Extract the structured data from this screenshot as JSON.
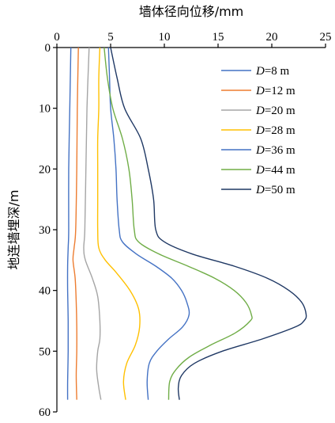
{
  "chart_data": {
    "type": "line",
    "xlabel": "墙体径向位移/mm",
    "ylabel": "地连墙埋深/m",
    "xlim": [
      0,
      25
    ],
    "ylim": [
      60,
      0
    ],
    "x_ticks": [
      "0",
      "5",
      "10",
      "15",
      "20",
      "25"
    ],
    "y_ticks": [
      "0",
      "10",
      "20",
      "30",
      "40",
      "50",
      "60"
    ],
    "x_axis_position": "top",
    "y_axis_inverted": true,
    "grid": false,
    "legend_position": "top-right",
    "series": [
      {
        "name": "D=8 m",
        "legend_italic": "D",
        "legend_rest": "=8 m",
        "color": "#4472C4",
        "depth": [
          0,
          10,
          20,
          30,
          33,
          36,
          40,
          45,
          50,
          55,
          58
        ],
        "displacement": [
          1.3,
          1.2,
          1.1,
          1.1,
          1.05,
          1.0,
          1.0,
          1.05,
          1.05,
          1.0,
          1.0
        ]
      },
      {
        "name": "D=12 m",
        "legend_italic": "D",
        "legend_rest": "=12 m",
        "color": "#ED7D31",
        "depth": [
          0,
          10,
          20,
          30,
          33,
          35,
          38,
          42,
          46,
          50,
          54,
          58
        ],
        "displacement": [
          2.0,
          1.9,
          1.85,
          1.75,
          1.6,
          1.5,
          1.7,
          1.8,
          1.85,
          1.85,
          1.8,
          1.85
        ]
      },
      {
        "name": "D=20 m",
        "legend_italic": "D",
        "legend_rest": "=20 m",
        "color": "#A5A5A5",
        "depth": [
          0,
          10,
          20,
          30,
          33,
          35,
          38,
          41,
          45,
          48,
          50,
          53,
          56,
          58
        ],
        "displacement": [
          3.0,
          2.8,
          2.7,
          2.6,
          2.5,
          2.65,
          3.3,
          3.8,
          4.0,
          4.0,
          3.8,
          3.7,
          3.9,
          4.1
        ]
      },
      {
        "name": "D=28 m",
        "legend_italic": "D",
        "legend_rest": "=28 m",
        "color": "#FFC000",
        "depth": [
          0,
          5,
          10,
          15,
          20,
          25,
          30,
          33,
          35,
          37,
          40,
          43,
          46,
          49,
          52,
          55,
          58
        ],
        "displacement": [
          4.0,
          3.9,
          3.9,
          3.8,
          3.8,
          3.8,
          3.8,
          3.9,
          4.5,
          5.5,
          6.8,
          7.6,
          7.7,
          7.3,
          6.5,
          6.2,
          6.4
        ]
      },
      {
        "name": "D=36 m",
        "legend_italic": "D",
        "legend_rest": "=36 m",
        "color": "#4472C4",
        "depth": [
          0,
          5,
          10,
          15,
          20,
          25,
          30,
          32,
          34,
          36,
          38,
          40,
          42,
          44,
          46,
          48,
          50,
          52,
          55,
          58
        ],
        "displacement": [
          4.8,
          4.9,
          5.0,
          5.3,
          5.5,
          5.6,
          5.8,
          6.1,
          7.4,
          9.2,
          10.7,
          11.6,
          12.1,
          12.3,
          11.7,
          10.4,
          9.3,
          8.6,
          8.4,
          8.5
        ]
      },
      {
        "name": "D=44 m",
        "legend_italic": "D",
        "legend_rest": "=44 m",
        "color": "#70AD47",
        "depth": [
          0,
          5,
          10,
          15,
          20,
          25,
          30,
          32,
          34,
          36,
          38,
          40,
          42,
          44,
          45,
          47,
          49,
          51,
          53,
          55,
          58
        ],
        "displacement": [
          4.4,
          4.7,
          5.2,
          6.1,
          6.7,
          7.0,
          7.2,
          7.6,
          9.5,
          12.2,
          14.7,
          16.5,
          17.6,
          18.1,
          18.0,
          16.6,
          14.3,
          12.3,
          11.1,
          10.5,
          10.4
        ]
      },
      {
        "name": "D=50 m",
        "legend_italic": "D",
        "legend_rest": "=50 m",
        "color": "#1F3864",
        "depth": [
          0,
          5,
          10,
          15,
          20,
          25,
          30,
          32,
          34,
          36,
          38,
          40,
          42,
          44,
          45,
          46,
          48,
          50,
          52,
          54,
          56,
          58
        ],
        "displacement": [
          5.0,
          5.6,
          6.3,
          7.8,
          8.5,
          9.0,
          9.2,
          10.0,
          12.6,
          16.5,
          19.6,
          21.6,
          22.8,
          23.2,
          23.0,
          22.2,
          19.1,
          15.4,
          12.8,
          11.6,
          11.3,
          11.4
        ]
      }
    ]
  }
}
